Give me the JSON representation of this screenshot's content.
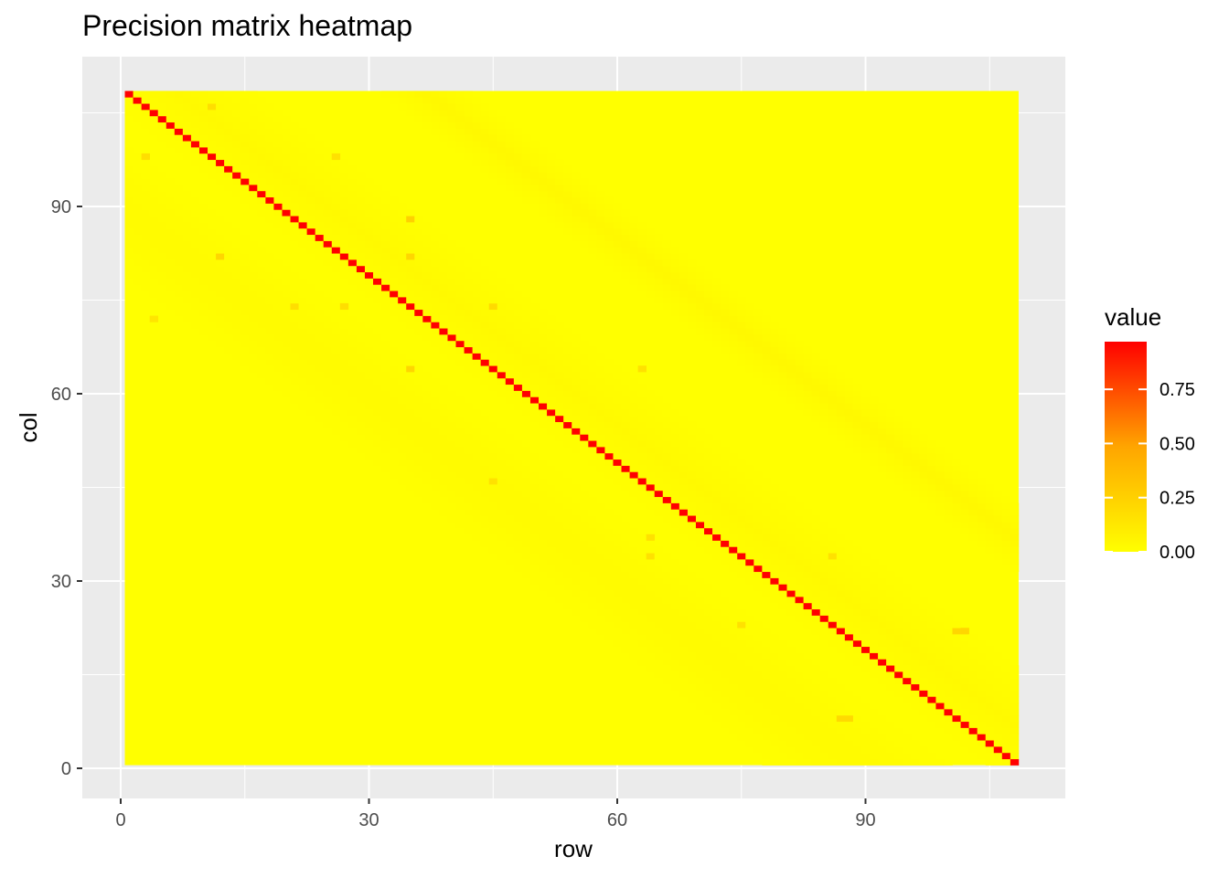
{
  "chart_data": {
    "type": "heatmap",
    "title": "Precision matrix heatmap",
    "xlabel": "row",
    "ylabel": "col",
    "xlim": [
      0,
      108
    ],
    "ylim": [
      0,
      108
    ],
    "n": 108,
    "x_ticks": [
      0,
      30,
      60,
      90
    ],
    "y_ticks": [
      0,
      30,
      60,
      90
    ],
    "diagonal_value": 0.97,
    "background_value": 0.0,
    "colorscale": {
      "low": "#FFFF00",
      "mid": "#FFA500",
      "high": "#FF0000"
    },
    "legend": {
      "title": "value",
      "position": "right",
      "breaks": [
        0.0,
        0.25,
        0.5,
        0.75
      ],
      "labels": [
        "0.00",
        "0.25",
        "0.50",
        "0.75"
      ],
      "range": [
        0,
        0.97
      ]
    },
    "off_diagonal_bands": [
      {
        "center": 90,
        "width": 6,
        "peak": 0.06
      },
      {
        "center": 60,
        "width": 10,
        "peak": 0.05
      },
      {
        "center": 35,
        "width": 12,
        "peak": 0.04
      }
    ],
    "off_diagonal_patches": [
      {
        "row": 11,
        "col": 106,
        "value": 0.18
      },
      {
        "row": 3,
        "col": 98,
        "value": 0.18
      },
      {
        "row": 26,
        "col": 98,
        "value": 0.16
      },
      {
        "row": 35,
        "col": 88,
        "value": 0.25
      },
      {
        "row": 35,
        "col": 82,
        "value": 0.22
      },
      {
        "row": 12,
        "col": 82,
        "value": 0.22
      },
      {
        "row": 21,
        "col": 74,
        "value": 0.18
      },
      {
        "row": 27,
        "col": 74,
        "value": 0.18
      },
      {
        "row": 45,
        "col": 74,
        "value": 0.2
      },
      {
        "row": 35,
        "col": 64,
        "value": 0.22
      },
      {
        "row": 4,
        "col": 72,
        "value": 0.14
      },
      {
        "row": 63,
        "col": 64,
        "value": 0.16
      },
      {
        "row": 45,
        "col": 46,
        "value": 0.16
      },
      {
        "row": 64,
        "col": 37,
        "value": 0.16
      },
      {
        "row": 64,
        "col": 34,
        "value": 0.16
      },
      {
        "row": 86,
        "col": 34,
        "value": 0.16
      },
      {
        "row": 101,
        "col": 22,
        "value": 0.22
      },
      {
        "row": 102,
        "col": 22,
        "value": 0.22
      },
      {
        "row": 87,
        "col": 8,
        "value": 0.2
      },
      {
        "row": 88,
        "col": 8,
        "value": 0.2
      },
      {
        "row": 75,
        "col": 23,
        "value": 0.16
      }
    ]
  }
}
